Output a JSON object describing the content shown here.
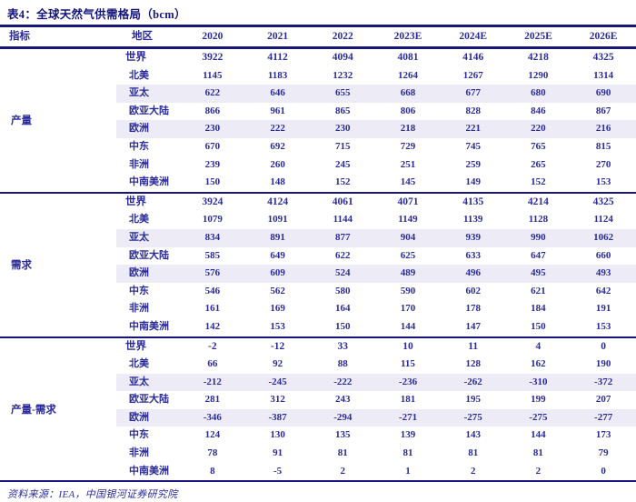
{
  "title": "表4：全球天然气供需格局（bcm）",
  "source": "资料来源：IEA，中国银河证券研究院",
  "colors": {
    "text": "#2B2B9B",
    "line": "#15157B",
    "shaded_row": "#EDECF6",
    "background": "#FFFFFF"
  },
  "table": {
    "header": {
      "indicator": "指标",
      "region": "地区",
      "years": [
        "2020",
        "2021",
        "2022",
        "2023E",
        "2024E",
        "2025E",
        "2026E"
      ]
    },
    "sections": [
      {
        "label": "产量",
        "rows": [
          {
            "region": "世界",
            "bold": true,
            "shaded": false,
            "values": [
              3922,
              4112,
              4094,
              4081,
              4146,
              4218,
              4325
            ]
          },
          {
            "region": "北美",
            "bold": false,
            "shaded": false,
            "values": [
              1145,
              1183,
              1232,
              1264,
              1267,
              1290,
              1314
            ]
          },
          {
            "region": "亚太",
            "bold": false,
            "shaded": true,
            "values": [
              622,
              646,
              655,
              668,
              677,
              680,
              690
            ]
          },
          {
            "region": "欧亚大陆",
            "bold": false,
            "shaded": false,
            "values": [
              866,
              961,
              865,
              806,
              828,
              846,
              867
            ]
          },
          {
            "region": "欧洲",
            "bold": false,
            "shaded": true,
            "values": [
              230,
              222,
              230,
              218,
              221,
              220,
              216
            ]
          },
          {
            "region": "中东",
            "bold": false,
            "shaded": false,
            "values": [
              670,
              692,
              715,
              729,
              745,
              765,
              815
            ]
          },
          {
            "region": "非洲",
            "bold": false,
            "shaded": false,
            "values": [
              239,
              260,
              245,
              251,
              259,
              265,
              270
            ]
          },
          {
            "region": "中南美洲",
            "bold": false,
            "shaded": false,
            "values": [
              150,
              148,
              152,
              145,
              149,
              152,
              153
            ]
          }
        ]
      },
      {
        "label": "需求",
        "rows": [
          {
            "region": "世界",
            "bold": true,
            "shaded": false,
            "values": [
              3924,
              4124,
              4061,
              4071,
              4135,
              4214,
              4325
            ]
          },
          {
            "region": "北美",
            "bold": false,
            "shaded": false,
            "values": [
              1079,
              1091,
              1144,
              1149,
              1139,
              1128,
              1124
            ]
          },
          {
            "region": "亚太",
            "bold": false,
            "shaded": true,
            "values": [
              834,
              891,
              877,
              904,
              939,
              990,
              1062
            ]
          },
          {
            "region": "欧亚大陆",
            "bold": false,
            "shaded": false,
            "values": [
              585,
              649,
              622,
              625,
              633,
              647,
              660
            ]
          },
          {
            "region": "欧洲",
            "bold": false,
            "shaded": true,
            "values": [
              576,
              609,
              524,
              489,
              496,
              495,
              493
            ]
          },
          {
            "region": "中东",
            "bold": false,
            "shaded": false,
            "values": [
              546,
              562,
              580,
              590,
              602,
              621,
              642
            ]
          },
          {
            "region": "非洲",
            "bold": false,
            "shaded": false,
            "values": [
              161,
              169,
              164,
              170,
              178,
              184,
              191
            ]
          },
          {
            "region": "中南美洲",
            "bold": false,
            "shaded": false,
            "values": [
              142,
              153,
              150,
              144,
              147,
              150,
              153
            ]
          }
        ]
      },
      {
        "label": "产量-需求",
        "rows": [
          {
            "region": "世界",
            "bold": true,
            "shaded": false,
            "values": [
              -2,
              -12,
              33,
              10,
              11,
              4,
              0
            ]
          },
          {
            "region": "北美",
            "bold": false,
            "shaded": false,
            "values": [
              66,
              92,
              88,
              115,
              128,
              162,
              190
            ]
          },
          {
            "region": "亚太",
            "bold": false,
            "shaded": true,
            "values": [
              -212,
              -245,
              -222,
              -236,
              -262,
              -310,
              -372
            ]
          },
          {
            "region": "欧亚大陆",
            "bold": false,
            "shaded": false,
            "values": [
              281,
              312,
              243,
              181,
              195,
              199,
              207
            ]
          },
          {
            "region": "欧洲",
            "bold": false,
            "shaded": true,
            "values": [
              -346,
              -387,
              -294,
              -271,
              -275,
              -275,
              -277
            ]
          },
          {
            "region": "中东",
            "bold": false,
            "shaded": false,
            "values": [
              124,
              130,
              135,
              139,
              143,
              144,
              173
            ]
          },
          {
            "region": "非洲",
            "bold": false,
            "shaded": false,
            "values": [
              78,
              91,
              81,
              81,
              81,
              81,
              79
            ]
          },
          {
            "region": "中南美洲",
            "bold": false,
            "shaded": false,
            "values": [
              8,
              -5,
              2,
              1,
              2,
              2,
              0
            ]
          }
        ]
      }
    ]
  }
}
